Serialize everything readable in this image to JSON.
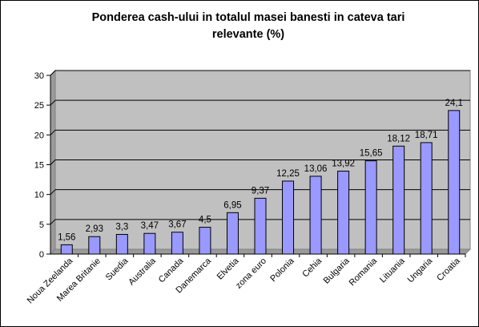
{
  "chart_data": {
    "type": "bar",
    "title_line1": "Ponderea cash-ului in totalul masei banesti in cateva tari",
    "title_line2": "relevante (%)",
    "categories": [
      "Noua Zeelanda",
      "Marea Britanie",
      "Suedia",
      "Australia",
      "Canada",
      "Danemarca",
      "Elvetia",
      "zona euro",
      "Polonia",
      "Cehia",
      "Bulgaria",
      "Romania",
      "Lituania",
      "Ungaria",
      "Croatia"
    ],
    "values": [
      1.56,
      2.93,
      3.3,
      3.47,
      3.67,
      4.5,
      6.95,
      9.37,
      12.25,
      13.06,
      13.92,
      15.65,
      18.12,
      18.71,
      24.1
    ],
    "data_labels": [
      "1,56",
      "2,93",
      "3,3",
      "3,47",
      "3,67",
      "4,5",
      "6,95",
      "9,37",
      "12,25",
      "13,06",
      "13,92",
      "15,65",
      "18,12",
      "18,71",
      "24,1"
    ],
    "yticks": [
      "0",
      "5",
      "10",
      "15",
      "20",
      "25",
      "30"
    ],
    "ylim": [
      0,
      30
    ],
    "grid": true,
    "legend": "none",
    "colors": {
      "plot_background": "#c0c0c0",
      "bar_fill": "#9999ff",
      "bar_stroke": "#000000",
      "gridline": "#000000"
    }
  }
}
